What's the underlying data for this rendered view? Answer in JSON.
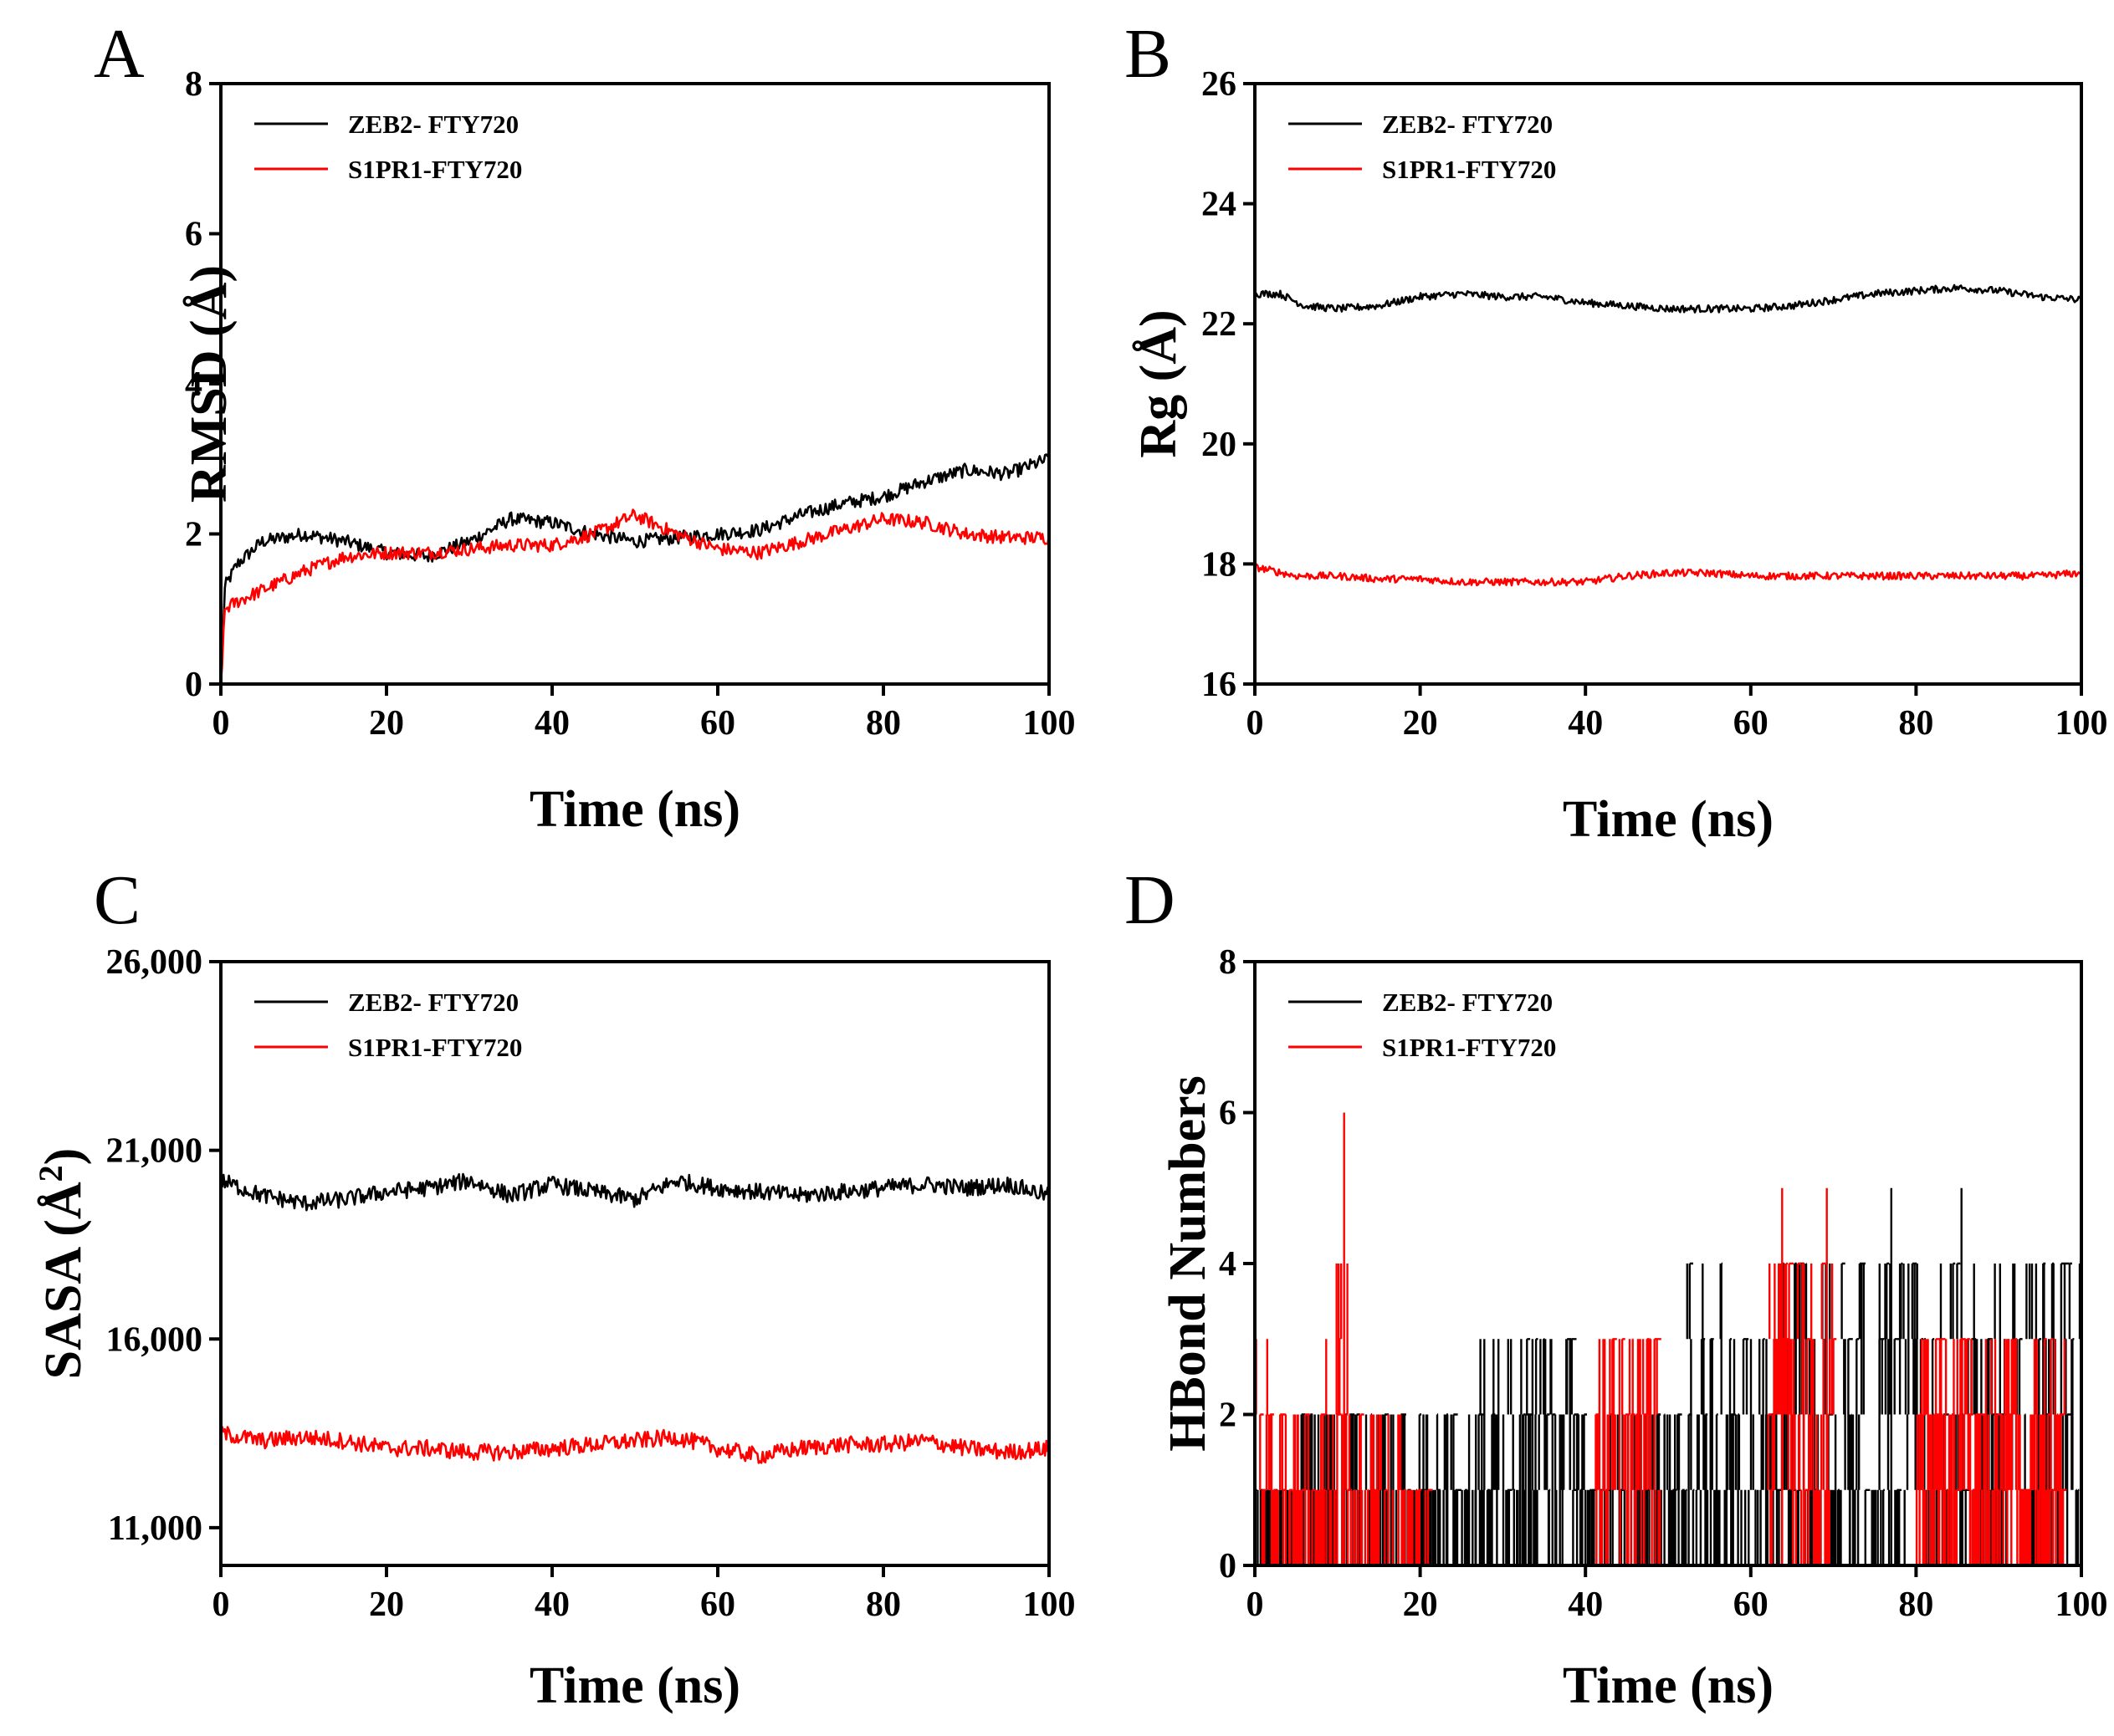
{
  "figure": {
    "colors": {
      "zeb2": "#000000",
      "s1pr1": "#ff0000"
    },
    "legend": [
      "ZEB2- FTY720",
      "S1PR1-FTY720"
    ]
  },
  "chart_data": [
    {
      "panel": "A",
      "type": "line",
      "xlabel": "Time (ns)",
      "ylabel": "RMSD (Å)",
      "xlim": [
        0,
        100
      ],
      "ylim": [
        0,
        8
      ],
      "xticks": [
        0,
        20,
        40,
        60,
        80,
        100
      ],
      "yticks": [
        0,
        2,
        4,
        6,
        8
      ],
      "ytick_labels": [
        "0",
        "2",
        "4",
        "6",
        "8"
      ],
      "noise": 0.09,
      "series": [
        {
          "name": "ZEB2- FTY720",
          "color": "#000000",
          "x": [
            0,
            0.5,
            2,
            5,
            10,
            15,
            20,
            25,
            30,
            35,
            40,
            45,
            50,
            55,
            60,
            65,
            70,
            75,
            80,
            85,
            90,
            95,
            100
          ],
          "y": [
            0,
            1.3,
            1.6,
            1.9,
            2.0,
            1.9,
            1.75,
            1.7,
            1.9,
            2.2,
            2.15,
            2.0,
            1.9,
            1.95,
            2.0,
            2.05,
            2.25,
            2.4,
            2.5,
            2.7,
            2.85,
            2.8,
            3.0
          ]
        },
        {
          "name": "S1PR1-FTY720",
          "color": "#ff0000",
          "x": [
            0,
            0.5,
            2,
            5,
            10,
            15,
            20,
            25,
            30,
            35,
            40,
            45,
            50,
            55,
            60,
            65,
            70,
            75,
            80,
            85,
            90,
            95,
            100
          ],
          "y": [
            0,
            1.0,
            1.1,
            1.25,
            1.5,
            1.7,
            1.75,
            1.75,
            1.8,
            1.85,
            1.85,
            2.0,
            2.25,
            2.0,
            1.8,
            1.75,
            1.9,
            2.05,
            2.2,
            2.15,
            2.0,
            1.95,
            1.95
          ]
        }
      ]
    },
    {
      "panel": "B",
      "type": "line",
      "xlabel": "Time (ns)",
      "ylabel": "Rg (Å)",
      "xlim": [
        0,
        100
      ],
      "ylim": [
        16,
        26
      ],
      "xticks": [
        0,
        20,
        40,
        60,
        80,
        100
      ],
      "yticks": [
        16,
        18,
        20,
        22,
        24,
        26
      ],
      "ytick_labels": [
        "16",
        "18",
        "20",
        "22",
        "24",
        "26"
      ],
      "noise": 0.06,
      "series": [
        {
          "name": "ZEB2- FTY720",
          "color": "#000000",
          "x": [
            0,
            3,
            6,
            10,
            15,
            20,
            25,
            30,
            35,
            40,
            45,
            50,
            55,
            60,
            65,
            70,
            75,
            80,
            85,
            90,
            95,
            100
          ],
          "y": [
            22.5,
            22.5,
            22.3,
            22.25,
            22.3,
            22.45,
            22.5,
            22.45,
            22.45,
            22.35,
            22.3,
            22.25,
            22.25,
            22.25,
            22.3,
            22.4,
            22.5,
            22.55,
            22.6,
            22.55,
            22.45,
            22.4
          ]
        },
        {
          "name": "S1PR1-FTY720",
          "color": "#ff0000",
          "x": [
            0,
            5,
            10,
            15,
            20,
            25,
            30,
            35,
            40,
            45,
            50,
            55,
            60,
            65,
            70,
            75,
            80,
            85,
            90,
            95,
            100
          ],
          "y": [
            17.95,
            17.8,
            17.8,
            17.75,
            17.75,
            17.7,
            17.7,
            17.7,
            17.7,
            17.8,
            17.85,
            17.85,
            17.8,
            17.8,
            17.8,
            17.8,
            17.8,
            17.8,
            17.8,
            17.8,
            17.85
          ]
        }
      ]
    },
    {
      "panel": "C",
      "type": "line",
      "xlabel": "Time (ns)",
      "ylabel": "SASA (Å²)",
      "xlim": [
        0,
        100
      ],
      "ylim": [
        10000,
        26000
      ],
      "xticks": [
        0,
        20,
        40,
        60,
        80,
        100
      ],
      "yticks": [
        11000,
        16000,
        21000,
        26000
      ],
      "ytick_labels": [
        "11,000",
        "16,000",
        "21,000",
        "26,000"
      ],
      "noise": 220,
      "series": [
        {
          "name": "ZEB2- FTY720",
          "color": "#000000",
          "x": [
            0,
            5,
            10,
            15,
            20,
            25,
            30,
            35,
            40,
            45,
            50,
            55,
            60,
            65,
            70,
            75,
            80,
            85,
            90,
            95,
            100
          ],
          "y": [
            20200,
            19800,
            19600,
            19700,
            19900,
            20000,
            20200,
            19800,
            20100,
            19900,
            19700,
            20200,
            20000,
            19900,
            19800,
            19900,
            20000,
            20100,
            20000,
            20100,
            19800
          ]
        },
        {
          "name": "S1PR1-FTY720",
          "color": "#ff0000",
          "x": [
            0,
            5,
            10,
            15,
            20,
            25,
            30,
            35,
            40,
            45,
            50,
            55,
            60,
            65,
            70,
            75,
            80,
            85,
            90,
            95,
            100
          ],
          "y": [
            13500,
            13300,
            13400,
            13300,
            13100,
            13100,
            13000,
            13000,
            13100,
            13200,
            13300,
            13400,
            13100,
            12900,
            13100,
            13200,
            13200,
            13300,
            13100,
            13000,
            13100
          ]
        }
      ]
    },
    {
      "panel": "D",
      "type": "line",
      "step": true,
      "xlabel": "Time (ns)",
      "ylabel": "HBond Numbers",
      "xlim": [
        0,
        100
      ],
      "ylim": [
        0,
        8
      ],
      "xticks": [
        0,
        20,
        40,
        60,
        80,
        100
      ],
      "yticks": [
        0,
        2,
        4,
        6,
        8
      ],
      "ytick_labels": [
        "0",
        "2",
        "4",
        "6",
        "8"
      ],
      "series": [
        {
          "name": "ZEB2- FTY720",
          "color": "#000000",
          "segments": [
            {
              "x0": 0,
              "x1": 4,
              "min": 0,
              "max": 1
            },
            {
              "x0": 4,
              "x1": 27,
              "min": 0,
              "max": 2
            },
            {
              "x0": 27,
              "x1": 40,
              "min": 0,
              "max": 3
            },
            {
              "x0": 40,
              "x1": 43,
              "min": 0,
              "max": 1
            },
            {
              "x0": 43,
              "x1": 52,
              "min": 0,
              "max": 2
            },
            {
              "x0": 52,
              "x1": 57,
              "min": 0,
              "max": 4
            },
            {
              "x0": 57,
              "x1": 62,
              "min": 0,
              "max": 3
            },
            {
              "x0": 62,
              "x1": 75,
              "min": 0,
              "max": 4
            },
            {
              "x0": 75,
              "x1": 100,
              "min": 0,
              "max": 4
            }
          ],
          "spikes": [
            {
              "x": 77,
              "y": 5
            },
            {
              "x": 85.5,
              "y": 5
            }
          ]
        },
        {
          "name": "S1PR1-FTY720",
          "color": "#ff0000",
          "segments": [
            {
              "x0": 0,
              "x1": 1.5,
              "min": 0,
              "max": 3
            },
            {
              "x0": 1.5,
              "x1": 8.5,
              "min": 0,
              "max": 2
            },
            {
              "x0": 8.5,
              "x1": 11.5,
              "min": 1,
              "max": 4
            },
            {
              "x0": 11.5,
              "x1": 19,
              "min": 0,
              "max": 2
            },
            {
              "x0": 19,
              "x1": 21,
              "min": 0,
              "max": 1
            },
            {
              "x0": 41,
              "x1": 49,
              "min": 0,
              "max": 3
            },
            {
              "x0": 62,
              "x1": 70,
              "min": 1,
              "max": 4
            },
            {
              "x0": 80,
              "x1": 98,
              "min": 1,
              "max": 3
            }
          ],
          "spikes": [
            {
              "x": 10.8,
              "y": 6
            },
            {
              "x": 63.8,
              "y": 5
            },
            {
              "x": 69.2,
              "y": 5
            }
          ]
        }
      ]
    }
  ]
}
